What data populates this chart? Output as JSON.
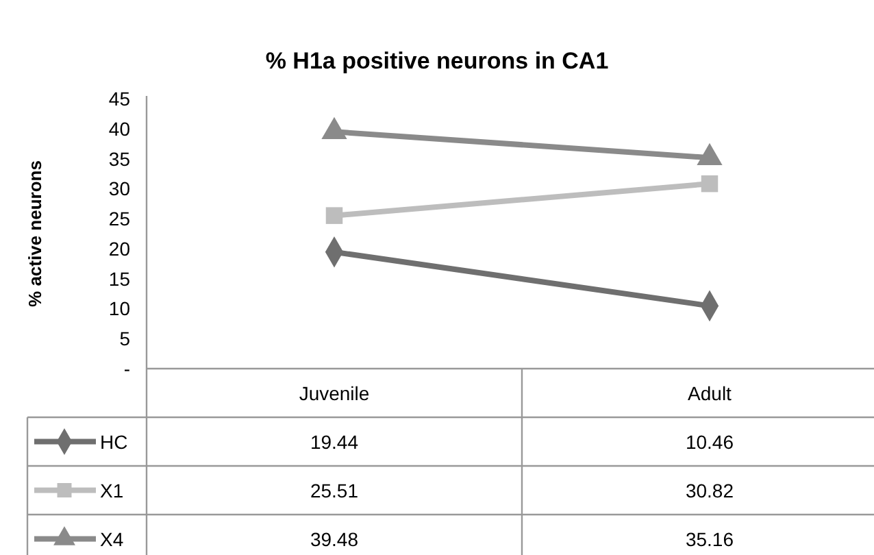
{
  "chart_data": {
    "type": "line",
    "title": "% H1a positive neurons in CA1",
    "ylabel": "% active neurons",
    "categories": [
      "Juvenile",
      "Adult"
    ],
    "series": [
      {
        "name": "HC",
        "color": "#6f6f6f",
        "values": [
          19.44,
          10.46
        ],
        "marker": "diamond"
      },
      {
        "name": "X1",
        "color": "#bdbdbd",
        "values": [
          25.51,
          30.82
        ],
        "marker": "square"
      },
      {
        "name": "X4",
        "color": "#8a8a8a",
        "values": [
          39.48,
          35.16
        ],
        "marker": "triangle"
      }
    ],
    "ylim": [
      0,
      45
    ],
    "yticks": [
      {
        "value": 0,
        "label": "-"
      },
      5,
      10,
      15,
      20,
      25,
      30,
      35,
      40,
      45
    ],
    "grid": false,
    "legend": "bottom left",
    "data_labels": true
  }
}
